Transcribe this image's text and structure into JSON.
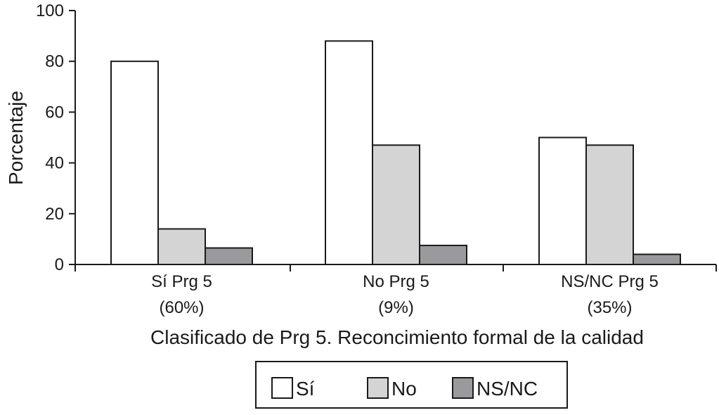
{
  "chart_data": {
    "type": "bar",
    "title": "",
    "xlabel": "Clasificado de Prg 5. Reconcimiento formal de la calidad",
    "ylabel": "Porcentaje",
    "ylim": [
      0,
      100
    ],
    "yticks": [
      0,
      20,
      40,
      60,
      80,
      100
    ],
    "categories": [
      {
        "line1": "Sí Prg 5",
        "line2": "(60%)"
      },
      {
        "line1": "No Prg 5",
        "line2": "(9%)"
      },
      {
        "line1": "NS/NC Prg 5",
        "line2": "(35%)"
      }
    ],
    "series": [
      {
        "name": "Sí",
        "color": "#ffffff",
        "values": [
          80,
          88,
          50
        ]
      },
      {
        "name": "No",
        "color": "#d4d4d4",
        "values": [
          14,
          47,
          47
        ]
      },
      {
        "name": "NS/NC",
        "color": "#9a9a9c",
        "values": [
          6.5,
          7.5,
          4
        ]
      }
    ],
    "grid": false,
    "legend_position": "bottom-center"
  }
}
